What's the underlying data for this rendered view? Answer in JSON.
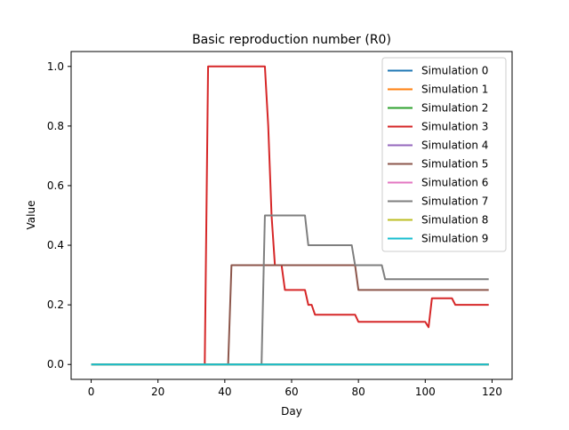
{
  "chart_data": {
    "type": "line",
    "title": "Basic reproduction number (R0)",
    "xlabel": "Day",
    "ylabel": "Value",
    "xlim": [
      -6,
      126
    ],
    "ylim": [
      -0.05,
      1.05
    ],
    "xticks": [
      0,
      20,
      40,
      60,
      80,
      100,
      120
    ],
    "yticks": [
      0.0,
      0.2,
      0.4,
      0.6,
      0.8,
      1.0
    ],
    "xtick_labels": [
      "0",
      "20",
      "40",
      "60",
      "80",
      "100",
      "120"
    ],
    "ytick_labels": [
      "0.0",
      "0.2",
      "0.4",
      "0.6",
      "0.8",
      "1.0"
    ],
    "grid": false,
    "legend_position": "top-right",
    "series": [
      {
        "name": "Simulation 0",
        "color": "#1f77b4",
        "points": [
          [
            0,
            0
          ],
          [
            119,
            0
          ]
        ]
      },
      {
        "name": "Simulation 1",
        "color": "#ff7f0e",
        "points": [
          [
            0,
            0
          ],
          [
            119,
            0
          ]
        ]
      },
      {
        "name": "Simulation 2",
        "color": "#2ca02c",
        "points": [
          [
            0,
            0
          ],
          [
            119,
            0
          ]
        ]
      },
      {
        "name": "Simulation 3",
        "color": "#d62728",
        "points": [
          [
            0,
            0
          ],
          [
            34,
            0
          ],
          [
            35,
            1.0
          ],
          [
            52,
            1.0
          ],
          [
            53,
            0.8
          ],
          [
            54,
            0.5
          ],
          [
            55,
            0.333
          ],
          [
            57,
            0.333
          ],
          [
            58,
            0.25
          ],
          [
            64,
            0.25
          ],
          [
            65,
            0.2
          ],
          [
            66,
            0.2
          ],
          [
            67,
            0.167
          ],
          [
            79,
            0.167
          ],
          [
            80,
            0.143
          ],
          [
            100,
            0.143
          ],
          [
            101,
            0.125
          ],
          [
            102,
            0.222
          ],
          [
            108,
            0.222
          ],
          [
            109,
            0.2
          ],
          [
            119,
            0.2
          ]
        ]
      },
      {
        "name": "Simulation 4",
        "color": "#9467bd",
        "points": [
          [
            0,
            0
          ],
          [
            119,
            0
          ]
        ]
      },
      {
        "name": "Simulation 5",
        "color": "#8c564b",
        "points": [
          [
            0,
            0
          ],
          [
            41,
            0
          ],
          [
            42,
            0.333
          ],
          [
            79,
            0.333
          ],
          [
            80,
            0.25
          ],
          [
            119,
            0.25
          ]
        ]
      },
      {
        "name": "Simulation 6",
        "color": "#e377c2",
        "points": [
          [
            0,
            0
          ],
          [
            119,
            0
          ]
        ]
      },
      {
        "name": "Simulation 7",
        "color": "#7f7f7f",
        "points": [
          [
            0,
            0
          ],
          [
            51,
            0
          ],
          [
            52,
            0.5
          ],
          [
            64,
            0.5
          ],
          [
            65,
            0.4
          ],
          [
            78,
            0.4
          ],
          [
            79,
            0.333
          ],
          [
            87,
            0.333
          ],
          [
            88,
            0.286
          ],
          [
            119,
            0.286
          ]
        ]
      },
      {
        "name": "Simulation 8",
        "color": "#bcbd22",
        "points": [
          [
            0,
            0
          ],
          [
            119,
            0
          ]
        ]
      },
      {
        "name": "Simulation 9",
        "color": "#17becf",
        "points": [
          [
            0,
            0
          ],
          [
            119,
            0
          ]
        ]
      }
    ]
  }
}
